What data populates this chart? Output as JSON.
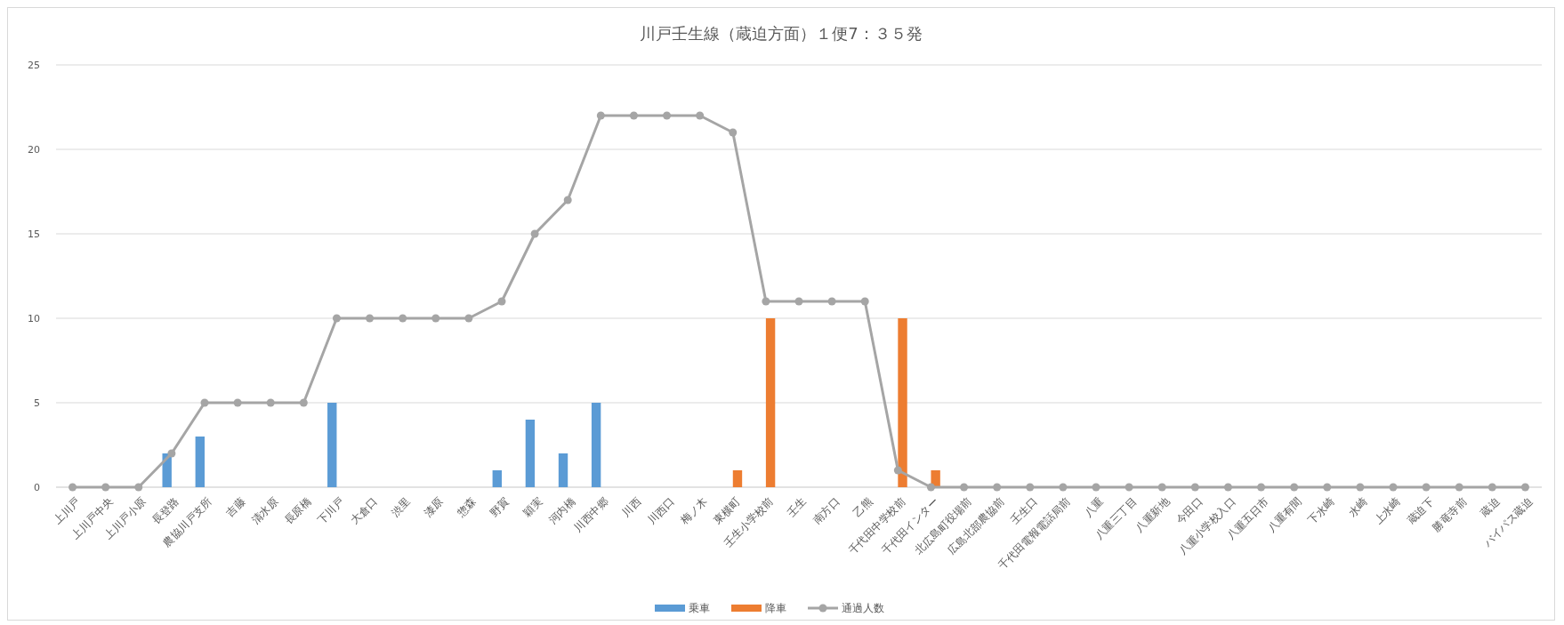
{
  "chart_data": {
    "type": "bar",
    "title": "川戸壬生線（蔵迫方面）１便7：３５発",
    "categories": [
      "上川戸",
      "上川戸中央",
      "上川戸小原",
      "長登路",
      "農協川戸支所",
      "吉藤",
      "清水原",
      "長原橋",
      "下川戸",
      "大倉口",
      "渋里",
      "漆原",
      "惣森",
      "野賀",
      "穎実",
      "河内橋",
      "川西中郷",
      "川西",
      "川西口",
      "梅ノ木",
      "東横町",
      "壬生小学校前",
      "壬生",
      "南方口",
      "乙熊",
      "千代田中学校前",
      "千代田インター",
      "北広島町役場前",
      "広島北部農協前",
      "壬生口",
      "千代田電報電話局前",
      "八重",
      "八重三丁目",
      "八重新地",
      "今田口",
      "八重小学校入口",
      "八重五日市",
      "八重有間",
      "下水崎",
      "水崎",
      "上水崎",
      "蔵迫下",
      "勝竜寺前",
      "蔵迫",
      "バイパス蔵迫"
    ],
    "series": [
      {
        "name": "乗車",
        "color": "#5b9bd5",
        "values": [
          null,
          null,
          null,
          2,
          3,
          null,
          null,
          null,
          5,
          null,
          null,
          null,
          null,
          1,
          4,
          2,
          5,
          null,
          null,
          null,
          null,
          null,
          null,
          null,
          null,
          null,
          null,
          null,
          null,
          null,
          null,
          null,
          null,
          null,
          null,
          null,
          null,
          null,
          null,
          null,
          null,
          null,
          null,
          null,
          null
        ]
      },
      {
        "name": "降車",
        "color": "#ed7d31",
        "values": [
          null,
          null,
          null,
          null,
          null,
          null,
          null,
          null,
          null,
          null,
          null,
          null,
          null,
          null,
          null,
          null,
          null,
          null,
          null,
          null,
          1,
          10,
          null,
          null,
          null,
          10,
          1,
          null,
          null,
          null,
          null,
          null,
          null,
          null,
          null,
          null,
          null,
          null,
          null,
          null,
          null,
          null,
          null,
          null,
          null
        ]
      },
      {
        "name": "通過人数",
        "type": "line",
        "color": "#a5a5a5",
        "marker": "circle",
        "values": [
          0,
          0,
          0,
          2,
          5,
          5,
          5,
          5,
          10,
          10,
          10,
          10,
          10,
          11,
          15,
          17,
          22,
          22,
          22,
          22,
          21,
          11,
          11,
          11,
          11,
          1,
          0,
          0,
          0,
          0,
          0,
          0,
          0,
          0,
          0,
          0,
          0,
          0,
          0,
          0,
          0,
          0,
          0,
          0,
          0
        ]
      }
    ],
    "ylim": [
      0,
      25
    ],
    "yticks": [
      0,
      5,
      10,
      15,
      20,
      25
    ],
    "grid": "y",
    "legend": "bottom"
  }
}
